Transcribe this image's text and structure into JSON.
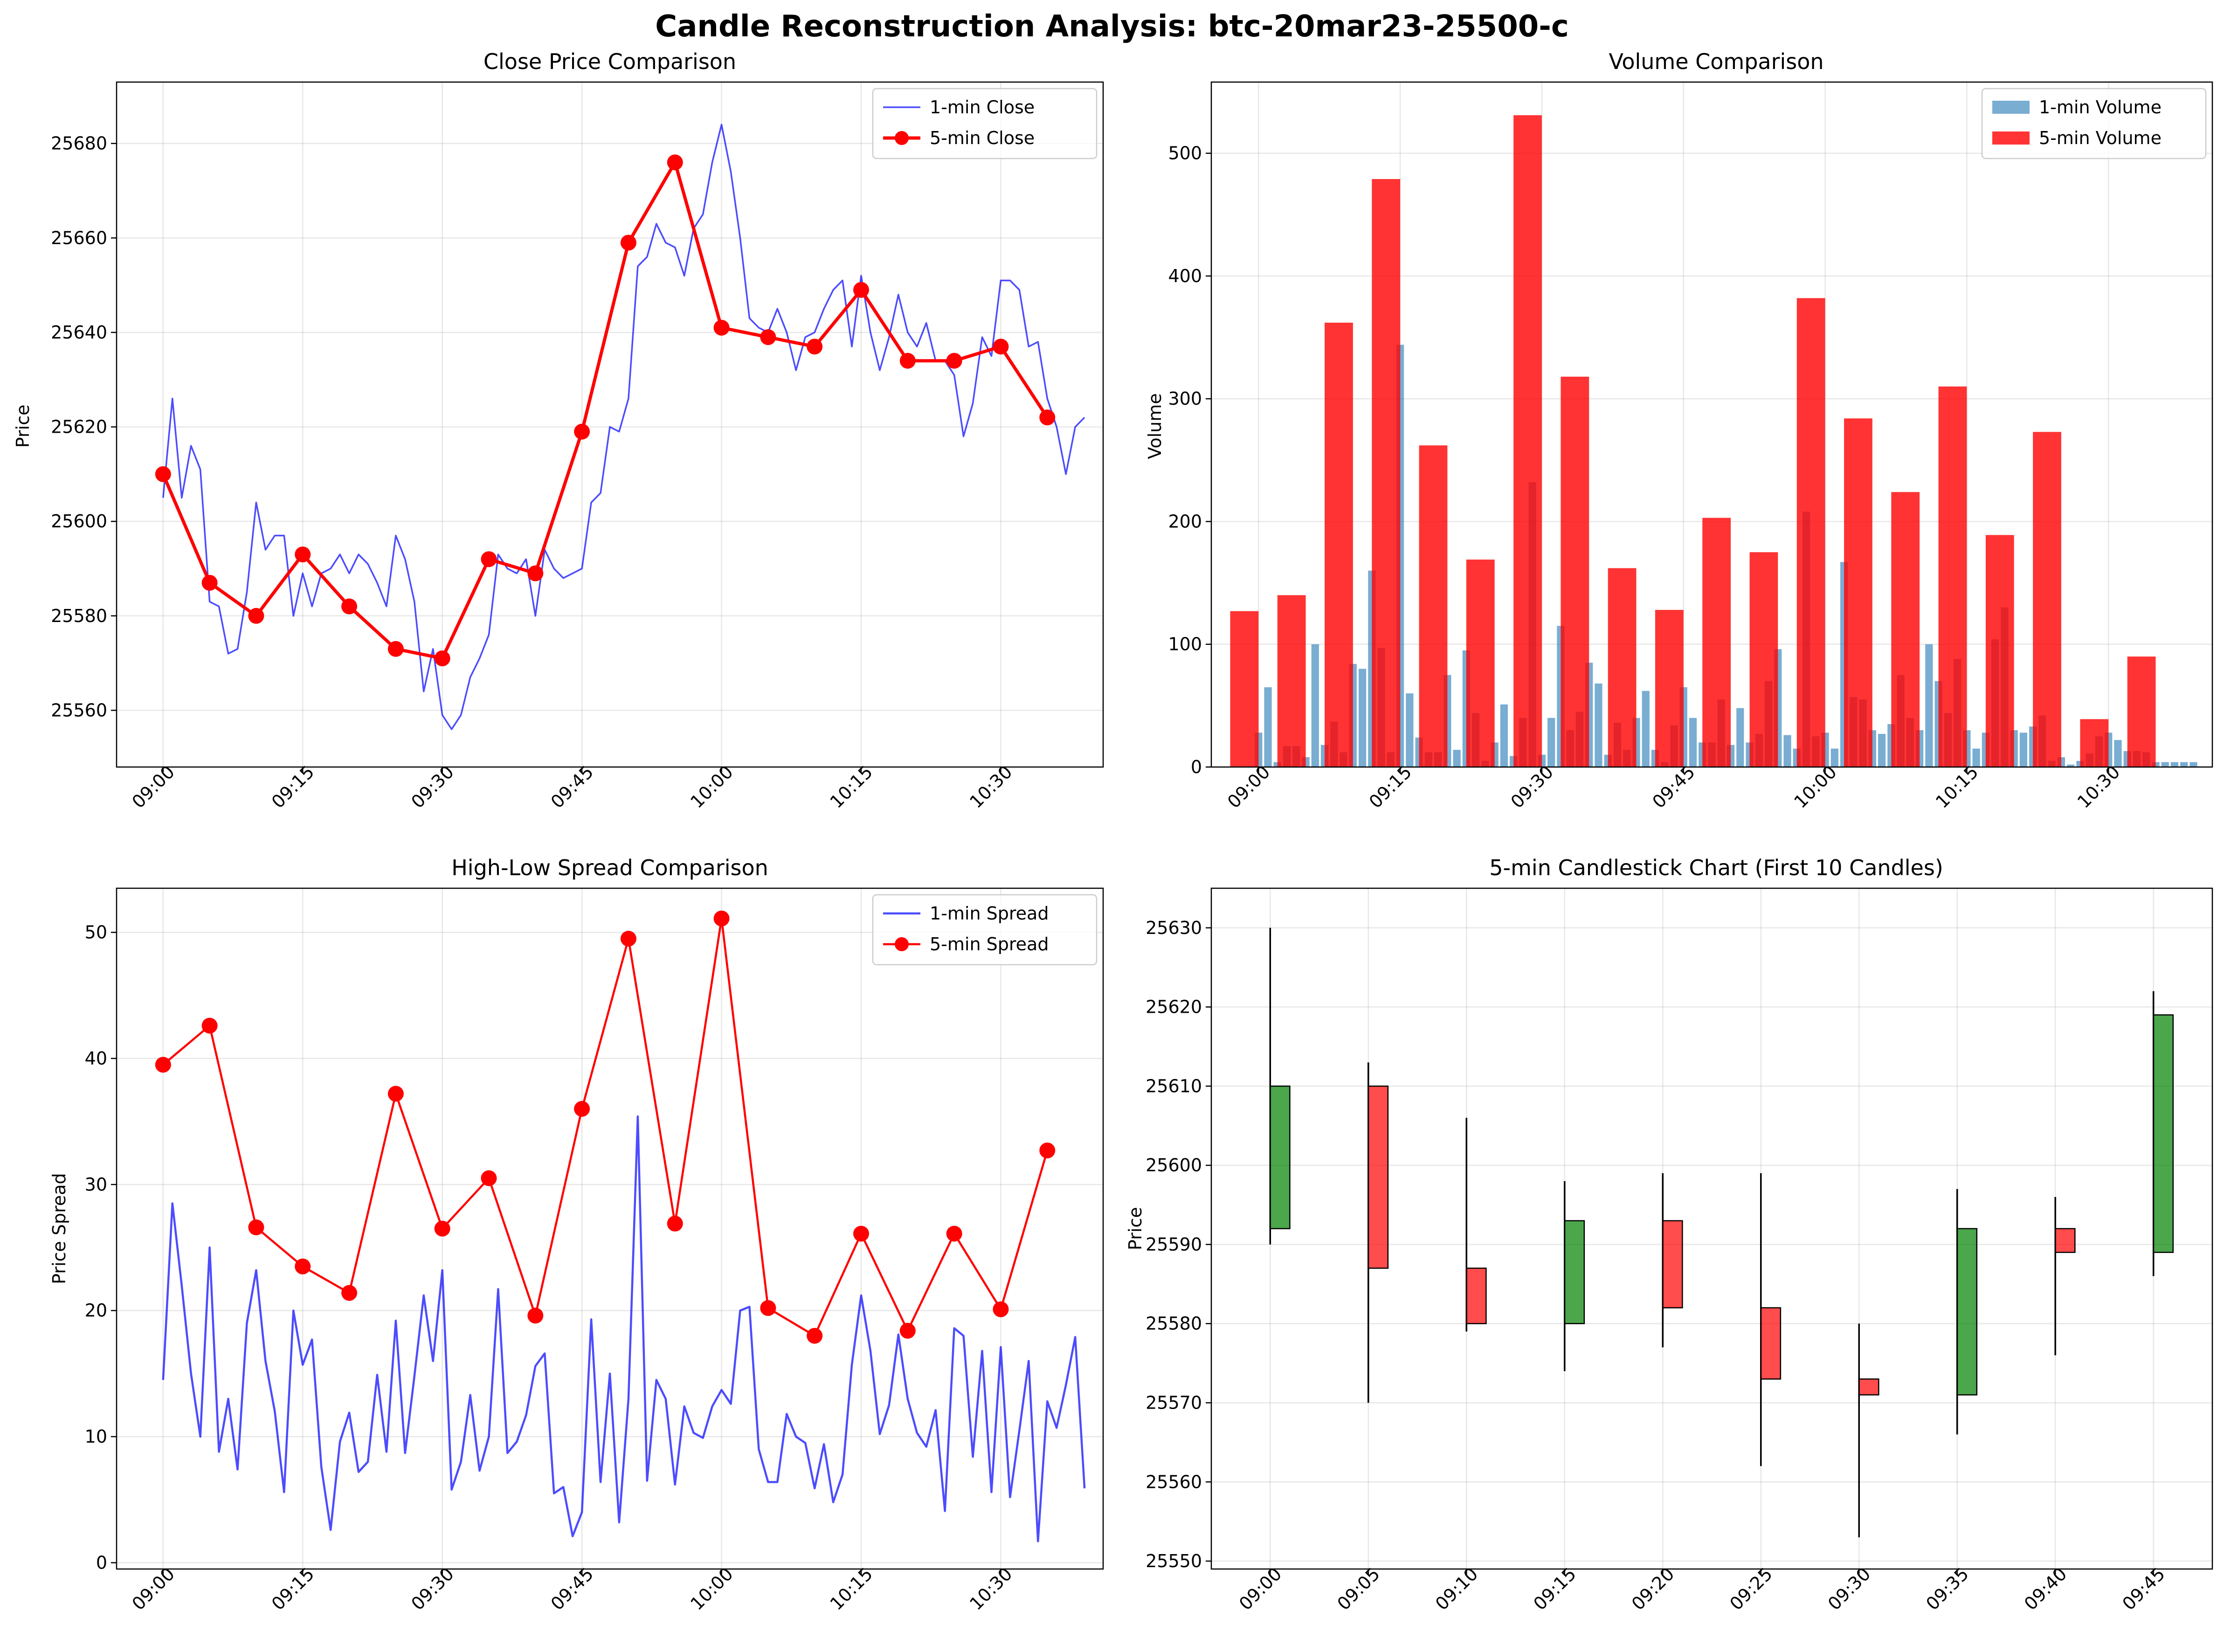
{
  "figure": {
    "suptitle": "Candle Reconstruction Analysis: btc-20mar23-25500-c"
  },
  "chart_data": [
    {
      "type": "line",
      "title": "Close Price Comparison",
      "xlabel": "",
      "ylabel": "Price",
      "ylim": [
        25548,
        25693
      ],
      "yticks": [
        25560,
        25580,
        25600,
        25620,
        25640,
        25660,
        25680
      ],
      "xticks": [
        "09:00",
        "09:15",
        "09:30",
        "09:45",
        "10:00",
        "10:15",
        "10:30"
      ],
      "grid": true,
      "legend_position": "top-right",
      "series": [
        {
          "name": "1-min Close",
          "color": "#0000ff",
          "x_minutes": [
            0,
            1,
            2,
            3,
            4,
            5,
            6,
            7,
            8,
            9,
            10,
            11,
            12,
            13,
            14,
            15,
            16,
            17,
            18,
            19,
            20,
            21,
            22,
            23,
            24,
            25,
            26,
            27,
            28,
            29,
            30,
            31,
            32,
            33,
            34,
            35,
            36,
            37,
            38,
            39,
            40,
            41,
            42,
            43,
            44,
            45,
            46,
            47,
            48,
            49,
            50,
            51,
            52,
            53,
            54,
            55,
            56,
            57,
            58,
            59,
            60,
            61,
            62,
            63,
            64,
            65,
            66,
            67,
            68,
            69,
            70,
            71,
            72,
            73,
            74,
            75,
            76,
            77,
            78,
            79,
            80,
            81,
            82,
            83,
            84,
            85,
            86,
            87,
            88,
            89,
            90,
            91,
            92,
            93,
            94,
            95,
            96,
            97,
            98,
            99
          ],
          "values": [
            25605,
            25626,
            25605,
            25616,
            25611,
            25583,
            25582,
            25572,
            25573,
            25585,
            25604,
            25594,
            25597,
            25597,
            25580,
            25589,
            25582,
            25589,
            25590,
            25593,
            25589,
            25593,
            25591,
            25587,
            25582,
            25597,
            25592,
            25583,
            25564,
            25573,
            25559,
            25556,
            25559,
            25567,
            25571,
            25576,
            25593,
            25590,
            25589,
            25592,
            25580,
            25594,
            25590,
            25588,
            25589,
            25590,
            25604,
            25606,
            25620,
            25619,
            25626,
            25654,
            25656,
            25663,
            25659,
            25658,
            25652,
            25662,
            25665,
            25676,
            25684,
            25674,
            25660,
            25643,
            25641,
            25640,
            25645,
            25640,
            25632,
            25639,
            25640,
            25645,
            25649,
            25651,
            25637,
            25652,
            25640,
            25632,
            25639,
            25648,
            25640,
            25637,
            25642,
            25634,
            25634,
            25631,
            25618,
            25625,
            25639,
            25635,
            25651,
            25651,
            25649,
            25637,
            25638,
            25626,
            25620,
            25610,
            25620,
            25622
          ]
        },
        {
          "name": "5-min Close",
          "color": "#ff0000",
          "x_minutes": [
            0,
            5,
            10,
            15,
            20,
            25,
            30,
            35,
            40,
            45,
            50,
            55,
            60,
            65,
            70,
            75,
            80,
            85,
            90,
            95
          ],
          "values": [
            25610,
            25587,
            25580,
            25593,
            25582,
            25573,
            25571,
            25592,
            25589,
            25619,
            25659,
            25676,
            25641,
            25639,
            25637,
            25649,
            25634,
            25634,
            25637,
            25622
          ]
        }
      ]
    },
    {
      "type": "bar",
      "title": "Volume Comparison",
      "xlabel": "",
      "ylabel": "Volume",
      "ylim": [
        0,
        558
      ],
      "yticks": [
        0,
        100,
        200,
        300,
        400,
        500
      ],
      "xticks": [
        "09:00",
        "09:15",
        "09:30",
        "09:45",
        "10:00",
        "10:15",
        "10:30"
      ],
      "grid": true,
      "legend_position": "top-right",
      "series": [
        {
          "name": "1-min Volume",
          "color": "#1f77b4",
          "x_minutes": [
            0,
            1,
            2,
            3,
            4,
            5,
            6,
            7,
            8,
            9,
            10,
            11,
            12,
            13,
            14,
            15,
            16,
            17,
            18,
            19,
            20,
            21,
            22,
            23,
            24,
            25,
            26,
            27,
            28,
            29,
            30,
            31,
            32,
            33,
            34,
            35,
            36,
            37,
            38,
            39,
            40,
            41,
            42,
            43,
            44,
            45,
            46,
            47,
            48,
            49,
            50,
            51,
            52,
            53,
            54,
            55,
            56,
            57,
            58,
            59,
            60,
            61,
            62,
            63,
            64,
            65,
            66,
            67,
            68,
            69,
            70,
            71,
            72,
            73,
            74,
            75,
            76,
            77,
            78,
            79,
            80,
            81,
            82,
            83,
            84,
            85,
            86,
            87,
            88,
            89,
            90,
            91,
            92,
            93,
            94,
            95,
            96,
            97,
            98,
            99
          ],
          "values": [
            28,
            65,
            4,
            17,
            17,
            8,
            100,
            18,
            37,
            12,
            84,
            80,
            160,
            97,
            12,
            344,
            60,
            24,
            12,
            12,
            75,
            14,
            95,
            44,
            5,
            20,
            51,
            9,
            40,
            232,
            10,
            40,
            115,
            30,
            45,
            85,
            68,
            10,
            36,
            14,
            40,
            62,
            14,
            4,
            34,
            65,
            40,
            20,
            20,
            55,
            18,
            48,
            20,
            27,
            70,
            96,
            26,
            15,
            208,
            25,
            28,
            15,
            167,
            57,
            55,
            30,
            27,
            35,
            75,
            40,
            30,
            100,
            70,
            44,
            88,
            30,
            15,
            28,
            104,
            130,
            30,
            28,
            33,
            42,
            5,
            8,
            2,
            5,
            11,
            25,
            28,
            22,
            13,
            13,
            12,
            4,
            4,
            4,
            4,
            4
          ]
        },
        {
          "name": "5-min Volume",
          "color": "#ff0000",
          "x_minutes": [
            0,
            5,
            10,
            15,
            20,
            25,
            30,
            35,
            40,
            45,
            50,
            55,
            60,
            65,
            70,
            75,
            80,
            85,
            90,
            95
          ],
          "values": [
            127,
            140,
            362,
            479,
            262,
            169,
            531,
            318,
            162,
            128,
            203,
            175,
            382,
            284,
            224,
            310,
            189,
            273,
            39,
            90
          ]
        }
      ]
    },
    {
      "type": "line",
      "title": "High-Low Spread Comparison",
      "xlabel": "",
      "ylabel": "Price Spread",
      "ylim": [
        -0.5,
        53.5
      ],
      "yticks": [
        0,
        10,
        20,
        30,
        40,
        50
      ],
      "xticks": [
        "09:00",
        "09:15",
        "09:30",
        "09:45",
        "10:00",
        "10:15",
        "10:30"
      ],
      "grid": true,
      "legend_position": "top-right",
      "series": [
        {
          "name": "1-min Spread",
          "color": "#0000ff",
          "x_minutes": [
            0,
            1,
            2,
            3,
            4,
            5,
            6,
            7,
            8,
            9,
            10,
            11,
            12,
            13,
            14,
            15,
            16,
            17,
            18,
            19,
            20,
            21,
            22,
            23,
            24,
            25,
            26,
            27,
            28,
            29,
            30,
            31,
            32,
            33,
            34,
            35,
            36,
            37,
            38,
            39,
            40,
            41,
            42,
            43,
            44,
            45,
            46,
            47,
            48,
            49,
            50,
            51,
            52,
            53,
            54,
            55,
            56,
            57,
            58,
            59,
            60,
            61,
            62,
            63,
            64,
            65,
            66,
            67,
            68,
            69,
            70,
            71,
            72,
            73,
            74,
            75,
            76,
            77,
            78,
            79,
            80,
            81,
            82,
            83,
            84,
            85,
            86,
            87,
            88,
            89,
            90,
            91,
            92,
            93,
            94,
            95,
            96,
            97,
            98,
            99
          ],
          "values": [
            14.5,
            28.5,
            22,
            15,
            10,
            25,
            8.8,
            13,
            7.4,
            19,
            23.2,
            16,
            12,
            5.6,
            20,
            15.7,
            17.7,
            7.6,
            2.6,
            9.6,
            11.9,
            7.2,
            8,
            14.9,
            8.8,
            19.2,
            8.7,
            14.8,
            21.2,
            16,
            23.2,
            5.8,
            8,
            13.3,
            7.3,
            10,
            21.7,
            8.7,
            9.6,
            11.7,
            15.6,
            16.6,
            5.5,
            6,
            2.1,
            4,
            19.3,
            6.4,
            15,
            3.2,
            13,
            35.4,
            6.5,
            14.5,
            13,
            6.2,
            12.4,
            10.3,
            9.9,
            12.4,
            13.7,
            12.6,
            20,
            20.3,
            9,
            6.4,
            6.4,
            11.8,
            10,
            9.5,
            5.9,
            9.4,
            4.8,
            7,
            15.7,
            21.2,
            16.8,
            10.2,
            12.5,
            18.1,
            13,
            10.3,
            9.2,
            12.1,
            4.1,
            18.6,
            18,
            8.4,
            16.8,
            5.6,
            17.1,
            5.2,
            10.5,
            16,
            1.7,
            12.8,
            10.7,
            14.1,
            17.9,
            5.9
          ]
        },
        {
          "name": "5-min Spread",
          "color": "#ff0000",
          "x_minutes": [
            0,
            5,
            10,
            15,
            20,
            25,
            30,
            35,
            40,
            45,
            50,
            55,
            60,
            65,
            70,
            75,
            80,
            85,
            90,
            95
          ],
          "values": [
            39.5,
            42.6,
            26.6,
            23.5,
            21.4,
            37.2,
            26.5,
            30.5,
            19.6,
            36,
            49.5,
            26.9,
            51.1,
            20.2,
            18,
            26.1,
            18.4,
            26.1,
            20.1,
            32.7
          ]
        }
      ]
    },
    {
      "type": "candlestick",
      "title": "5-min Candlestick Chart (First 10 Candles)",
      "xlabel": "",
      "ylabel": "Price",
      "ylim": [
        25549,
        25635
      ],
      "yticks": [
        25550,
        25560,
        25570,
        25580,
        25590,
        25600,
        25610,
        25620,
        25630
      ],
      "grid": true,
      "up_color": "#008000",
      "down_color": "#ff0000",
      "categories": [
        "09:00",
        "09:05",
        "09:10",
        "09:15",
        "09:20",
        "09:25",
        "09:30",
        "09:35",
        "09:40",
        "09:45"
      ],
      "open": [
        25592,
        25610,
        25587,
        25580,
        25593,
        25582,
        25573,
        25571,
        25592,
        25589
      ],
      "high": [
        25630,
        25613,
        25606,
        25598,
        25599,
        25599,
        25580,
        25597,
        25596,
        25622
      ],
      "low": [
        25590,
        25570,
        25579,
        25574,
        25577,
        25562,
        25553,
        25566,
        25576,
        25586
      ],
      "close": [
        25610,
        25587,
        25580,
        25593,
        25582,
        25573,
        25571,
        25592,
        25589,
        25619
      ]
    }
  ]
}
